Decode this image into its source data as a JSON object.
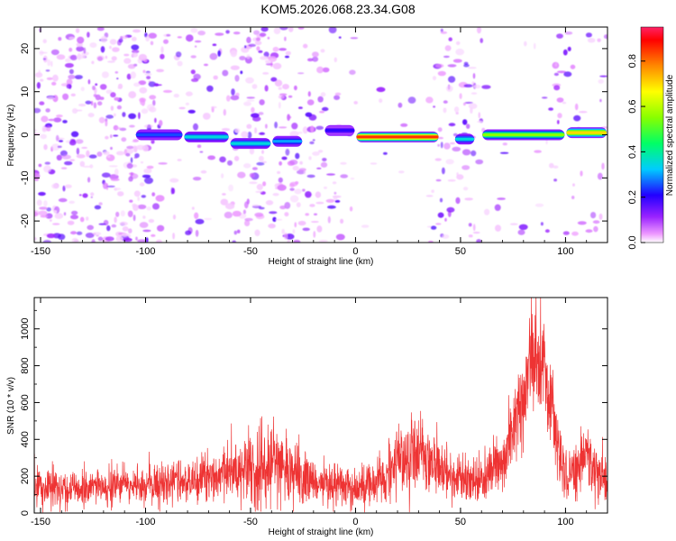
{
  "title": "KOM5.2026.068.23.34.G08",
  "chart_data": [
    {
      "type": "heatmap",
      "name": "spectrogram",
      "xlabel": "Height of straight line (km)",
      "ylabel": "Frequency (Hz)",
      "xlim": [
        -153,
        120
      ],
      "ylim": [
        -25,
        25
      ],
      "xticks": [
        -150,
        -100,
        -50,
        0,
        50,
        100
      ],
      "xtick_labels": [
        "-150",
        "-100",
        "-50",
        "0",
        "50",
        "100"
      ],
      "yticks": [
        20,
        10,
        0,
        -10,
        -20
      ],
      "ytick_labels": [
        "20",
        "10",
        "0",
        "-10",
        "-20"
      ],
      "colorbar": {
        "label": "Normalized spectral amplitude",
        "range": [
          0,
          0.95
        ],
        "ticks": [
          0.0,
          0.2,
          0.4,
          0.6,
          0.8
        ],
        "tick_labels": [
          "0.0",
          "0.2",
          "0.4",
          "0.6",
          "0.8"
        ]
      },
      "signal_track": [
        {
          "x_start": -105,
          "x_end": -82,
          "freq": 0,
          "amp": 0.25
        },
        {
          "x_start": -82,
          "x_end": -60,
          "freq": -0.5,
          "amp": 0.35
        },
        {
          "x_start": -60,
          "x_end": -40,
          "freq": -2,
          "amp": 0.35
        },
        {
          "x_start": -40,
          "x_end": -25,
          "freq": -1.5,
          "amp": 0.3
        },
        {
          "x_start": -15,
          "x_end": 0,
          "freq": 1,
          "amp": 0.2
        },
        {
          "x_start": 0,
          "x_end": 40,
          "freq": -0.5,
          "amp": 0.85
        },
        {
          "x_start": 47,
          "x_end": 57,
          "freq": -1,
          "amp": 0.35
        },
        {
          "x_start": 60,
          "x_end": 100,
          "freq": 0,
          "amp": 0.55
        },
        {
          "x_start": 100,
          "x_end": 120,
          "freq": 0.5,
          "amp": 0.7
        }
      ]
    },
    {
      "type": "line",
      "name": "snr",
      "xlabel": "Height of straight line (km)",
      "ylabel": "SNR (10 * v/v)",
      "xlim": [
        -153,
        120
      ],
      "ylim": [
        0,
        1170
      ],
      "xticks": [
        -150,
        -100,
        -50,
        0,
        50,
        100
      ],
      "xtick_labels": [
        "-150",
        "-100",
        "-50",
        "0",
        "50",
        "100"
      ],
      "yticks": [
        0,
        200,
        400,
        600,
        800,
        1000
      ],
      "ytick_labels": [
        "0",
        "200",
        "400",
        "600",
        "800",
        "1000"
      ],
      "series": [
        {
          "name": "SNR",
          "color": "#ee3333",
          "envelope_x": [
            -153,
            -140,
            -120,
            -100,
            -80,
            -60,
            -50,
            -40,
            -30,
            -20,
            -10,
            0,
            10,
            20,
            30,
            40,
            50,
            60,
            70,
            80,
            85,
            90,
            95,
            100,
            110,
            120
          ],
          "envelope_mean": [
            150,
            130,
            140,
            150,
            170,
            210,
            240,
            230,
            220,
            160,
            150,
            130,
            180,
            280,
            330,
            240,
            180,
            170,
            300,
            650,
            850,
            780,
            450,
            180,
            310,
            180
          ],
          "envelope_amp": [
            120,
            100,
            100,
            110,
            120,
            160,
            230,
            200,
            180,
            120,
            120,
            110,
            130,
            180,
            190,
            150,
            120,
            120,
            160,
            250,
            300,
            280,
            200,
            150,
            180,
            150
          ]
        }
      ]
    }
  ]
}
